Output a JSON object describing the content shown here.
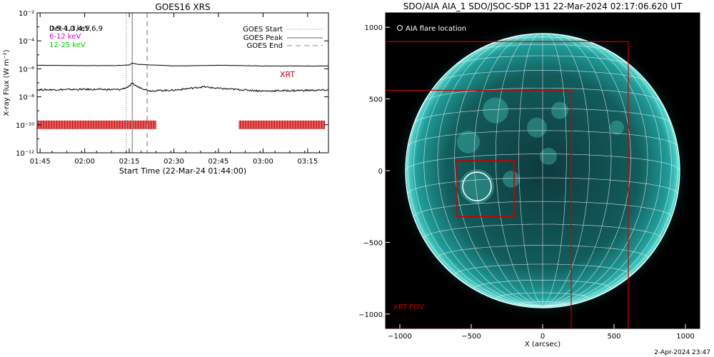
{
  "left_panel": {
    "title": "GOES16 XRS",
    "xlabel": "Start Time (22-Mar-24 01:44:00)",
    "ylabel": "X-ray Flux (W m⁻²)",
    "legend_lines": [
      "GOES Start",
      "GOES Peak",
      "GOES End"
    ],
    "channel_labels": [
      {
        "text": "0.5-4.0 keV",
        "color": "#000000"
      },
      {
        "text": "Det 1,3,4,5,6,9",
        "color": "#000000"
      },
      {
        "text": "6-12 keV",
        "color": "#cc00cc"
      },
      {
        "text": "12-25 keV",
        "color": "#00cc00"
      }
    ],
    "xrt_label": "XRT",
    "xrt_color": "#cc0000"
  },
  "right_panel": {
    "title": "SDO/AIA AIA_1 SDO/JSOC-SDP 131 22-Mar-2024 02:17:06.620 UT",
    "flare_legend": "AIA flare location",
    "xrt_fov_label": "XRT FOV",
    "xlabel": "X (arcsec)",
    "disk_color": "#1a9a96",
    "box_color": "#cc0000"
  },
  "footer_timestamp": "2-Apr-2024 23:47",
  "chart_data": [
    {
      "type": "line",
      "title": "GOES16 XRS",
      "xlabel": "Start Time (22-Mar-24 01:44:00)",
      "ylabel": "X-ray Flux (W m⁻²)",
      "y_scale": "log",
      "ylim": [
        1e-12,
        0.01
      ],
      "xlim": [
        "01:44",
        "03:22"
      ],
      "x_ticks": [
        "01:45",
        "02:00",
        "02:15",
        "02:30",
        "02:45",
        "03:00",
        "03:15"
      ],
      "y_ticks": [
        "10⁻¹²",
        "10⁻¹⁰",
        "10⁻⁸",
        "10⁻⁶",
        "10⁻⁴",
        "10⁻²"
      ],
      "series": [
        {
          "name": "",
          "color": "#000000",
          "x": [
            "01:44",
            "02:00",
            "02:10",
            "02:15",
            "02:16",
            "02:18",
            "02:30",
            "02:45",
            "03:00",
            "03:15",
            "03:22"
          ],
          "y": [
            1.8e-06,
            1.7e-06,
            1.7e-06,
            1.9e-06,
            2.6e-06,
            2.1e-06,
            1.6e-06,
            1.8e-06,
            1.6e-06,
            1.6e-06,
            1.6e-06
          ]
        },
        {
          "name": "",
          "color": "#000000",
          "x": [
            "01:44",
            "02:00",
            "02:12",
            "02:15",
            "02:16",
            "02:18",
            "02:22",
            "02:30",
            "02:40",
            "02:45",
            "03:00",
            "03:15",
            "03:22"
          ],
          "y": [
            3.2e-08,
            3.4e-08,
            3.3e-08,
            5.5e-08,
            9e-08,
            5e-08,
            2.7e-08,
            3e-08,
            5.2e-08,
            4e-08,
            2.6e-08,
            2.9e-08,
            3e-08
          ]
        }
      ],
      "vertical_markers": [
        {
          "name": "GOES Start",
          "x": "02:14",
          "style": "dotted",
          "color": "#888888"
        },
        {
          "name": "GOES Peak",
          "x": "02:16",
          "style": "solid",
          "color": "#888888"
        },
        {
          "name": "GOES End",
          "x": "02:21",
          "style": "dashed",
          "color": "#888888"
        }
      ],
      "xrt_coverage": [
        {
          "start": "01:44",
          "end": "02:24"
        },
        {
          "start": "02:52",
          "end": "03:21"
        }
      ],
      "xrt_coverage_level": 1e-10
    },
    {
      "type": "image",
      "title": "SDO/AIA AIA_1 SDO/JSOC-SDP 131 22-Mar-2024 02:17:06.620 UT",
      "xlabel": "X (arcsec)",
      "xlim": [
        -1100,
        1100
      ],
      "ylim": [
        -1100,
        1100
      ],
      "x_ticks": [
        -1000,
        -500,
        0,
        500,
        1000
      ],
      "y_ticks": [
        -1000,
        -500,
        0,
        500,
        1000
      ],
      "solar_radius_arcsec": 960,
      "grid_spacing_deg": 10,
      "flare_location": {
        "x": -460,
        "y": -110,
        "radius": 100
      },
      "boxes": [
        {
          "x0": -1100,
          "y0": -1100,
          "x1": 600,
          "y1": 900
        },
        {
          "x0": -1100,
          "y0": -1100,
          "x1": 200,
          "y1": 560
        },
        {
          "x0": -600,
          "y0": -320,
          "x1": -200,
          "y1": 70
        }
      ]
    }
  ]
}
